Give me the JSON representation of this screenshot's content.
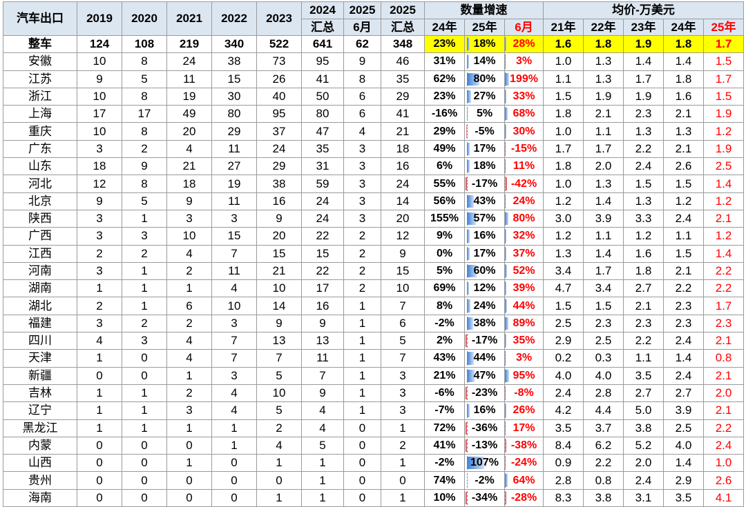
{
  "header": {
    "region": "汽车出口",
    "years": [
      "2019",
      "2020",
      "2021",
      "2022",
      "2023"
    ],
    "y2024": [
      "2024",
      "汇总"
    ],
    "y2025m": [
      "2025",
      "6月"
    ],
    "y2025t": [
      "2025",
      "汇总"
    ],
    "growth_group": "数量增速",
    "growth_cols": [
      "24年",
      "25年",
      "6月"
    ],
    "price_group": "均价-万美元",
    "price_cols": [
      "21年",
      "22年",
      "23年",
      "24年",
      "25年"
    ]
  },
  "rows": [
    {
      "name": "整车",
      "v": [
        "124",
        "108",
        "219",
        "340",
        "522",
        "641",
        "62",
        "348"
      ],
      "g24": "23%",
      "g25": "18%",
      "gm": "28%",
      "p": [
        "1.6",
        "1.8",
        "1.9",
        "1.8",
        "1.7"
      ],
      "g25n": 18,
      "gmn": 28
    },
    {
      "name": "安徽",
      "v": [
        "10",
        "8",
        "24",
        "38",
        "73",
        "95",
        "9",
        "46"
      ],
      "g24": "31%",
      "g25": "14%",
      "gm": "3%",
      "p": [
        "1.0",
        "1.3",
        "1.4",
        "1.4",
        "1.5"
      ],
      "g25n": 14,
      "gmn": 3
    },
    {
      "name": "江苏",
      "v": [
        "9",
        "5",
        "11",
        "15",
        "26",
        "41",
        "8",
        "35"
      ],
      "g24": "62%",
      "g25": "80%",
      "gm": "199%",
      "p": [
        "1.1",
        "1.3",
        "1.7",
        "1.8",
        "1.7"
      ],
      "g25n": 80,
      "gmn": 199
    },
    {
      "name": "浙江",
      "v": [
        "10",
        "8",
        "19",
        "30",
        "40",
        "50",
        "6",
        "29"
      ],
      "g24": "23%",
      "g25": "27%",
      "gm": "33%",
      "p": [
        "1.5",
        "1.9",
        "1.9",
        "1.6",
        "1.5"
      ],
      "g25n": 27,
      "gmn": 33
    },
    {
      "name": "上海",
      "v": [
        "17",
        "17",
        "49",
        "80",
        "95",
        "80",
        "6",
        "41"
      ],
      "g24": "-16%",
      "g25": "5%",
      "gm": "68%",
      "p": [
        "1.8",
        "2.1",
        "2.3",
        "2.1",
        "1.9"
      ],
      "g25n": 5,
      "gmn": 68
    },
    {
      "name": "重庆",
      "v": [
        "10",
        "8",
        "20",
        "29",
        "37",
        "47",
        "4",
        "21"
      ],
      "g24": "29%",
      "g25": "-5%",
      "gm": "30%",
      "p": [
        "1.0",
        "1.1",
        "1.3",
        "1.3",
        "1.2"
      ],
      "g25n": -5,
      "gmn": 30
    },
    {
      "name": "广东",
      "v": [
        "3",
        "2",
        "4",
        "11",
        "24",
        "35",
        "3",
        "18"
      ],
      "g24": "49%",
      "g25": "17%",
      "gm": "-15%",
      "p": [
        "1.7",
        "1.7",
        "2.2",
        "2.1",
        "1.9"
      ],
      "g25n": 17,
      "gmn": -15
    },
    {
      "name": "山东",
      "v": [
        "18",
        "9",
        "21",
        "27",
        "29",
        "31",
        "3",
        "16"
      ],
      "g24": "6%",
      "g25": "18%",
      "gm": "11%",
      "p": [
        "1.8",
        "2.0",
        "2.4",
        "2.6",
        "2.5"
      ],
      "g25n": 18,
      "gmn": 11
    },
    {
      "name": "河北",
      "v": [
        "12",
        "8",
        "18",
        "19",
        "38",
        "59",
        "3",
        "24"
      ],
      "g24": "55%",
      "g25": "-17%",
      "gm": "-42%",
      "p": [
        "1.0",
        "1.3",
        "1.5",
        "1.5",
        "1.4"
      ],
      "g25n": -17,
      "gmn": -42
    },
    {
      "name": "北京",
      "v": [
        "9",
        "5",
        "9",
        "11",
        "16",
        "24",
        "3",
        "14"
      ],
      "g24": "56%",
      "g25": "43%",
      "gm": "24%",
      "p": [
        "1.2",
        "1.4",
        "1.3",
        "1.2",
        "1.2"
      ],
      "g25n": 43,
      "gmn": 24
    },
    {
      "name": "陕西",
      "v": [
        "3",
        "1",
        "3",
        "3",
        "9",
        "24",
        "3",
        "20"
      ],
      "g24": "155%",
      "g25": "57%",
      "gm": "80%",
      "p": [
        "3.0",
        "3.9",
        "3.3",
        "2.4",
        "2.1"
      ],
      "g25n": 57,
      "gmn": 80
    },
    {
      "name": "广西",
      "v": [
        "3",
        "3",
        "10",
        "15",
        "20",
        "22",
        "2",
        "12"
      ],
      "g24": "9%",
      "g25": "16%",
      "gm": "32%",
      "p": [
        "1.2",
        "1.1",
        "1.2",
        "1.1",
        "1.2"
      ],
      "g25n": 16,
      "gmn": 32
    },
    {
      "name": "江西",
      "v": [
        "2",
        "2",
        "4",
        "7",
        "15",
        "15",
        "2",
        "9"
      ],
      "g24": "0%",
      "g25": "17%",
      "gm": "37%",
      "p": [
        "1.3",
        "1.4",
        "1.6",
        "1.5",
        "1.4"
      ],
      "g25n": 17,
      "gmn": 37
    },
    {
      "name": "河南",
      "v": [
        "3",
        "1",
        "2",
        "11",
        "21",
        "22",
        "2",
        "15"
      ],
      "g24": "5%",
      "g25": "60%",
      "gm": "52%",
      "p": [
        "3.4",
        "1.7",
        "1.8",
        "2.1",
        "2.2"
      ],
      "g25n": 60,
      "gmn": 52
    },
    {
      "name": "湖南",
      "v": [
        "1",
        "1",
        "1",
        "4",
        "10",
        "17",
        "2",
        "10"
      ],
      "g24": "69%",
      "g25": "12%",
      "gm": "39%",
      "p": [
        "4.7",
        "3.4",
        "2.7",
        "2.2",
        "2.2"
      ],
      "g25n": 12,
      "gmn": 39
    },
    {
      "name": "湖北",
      "v": [
        "2",
        "1",
        "6",
        "10",
        "14",
        "16",
        "1",
        "7"
      ],
      "g24": "8%",
      "g25": "24%",
      "gm": "44%",
      "p": [
        "1.5",
        "1.5",
        "2.1",
        "2.3",
        "1.7"
      ],
      "g25n": 24,
      "gmn": 44
    },
    {
      "name": "福建",
      "v": [
        "3",
        "2",
        "2",
        "3",
        "9",
        "9",
        "1",
        "6"
      ],
      "g24": "-2%",
      "g25": "38%",
      "gm": "89%",
      "p": [
        "2.5",
        "2.3",
        "2.3",
        "2.3",
        "2.3"
      ],
      "g25n": 38,
      "gmn": 89
    },
    {
      "name": "四川",
      "v": [
        "4",
        "3",
        "4",
        "7",
        "13",
        "13",
        "1",
        "5"
      ],
      "g24": "2%",
      "g25": "-17%",
      "gm": "35%",
      "p": [
        "2.9",
        "2.5",
        "2.2",
        "2.4",
        "2.1"
      ],
      "g25n": -17,
      "gmn": 35
    },
    {
      "name": "天津",
      "v": [
        "1",
        "0",
        "4",
        "7",
        "7",
        "11",
        "1",
        "7"
      ],
      "g24": "43%",
      "g25": "44%",
      "gm": "3%",
      "p": [
        "0.2",
        "0.3",
        "1.1",
        "1.4",
        "0.8"
      ],
      "g25n": 44,
      "gmn": 3
    },
    {
      "name": "新疆",
      "v": [
        "0",
        "0",
        "1",
        "3",
        "5",
        "7",
        "1",
        "3"
      ],
      "g24": "21%",
      "g25": "47%",
      "gm": "95%",
      "p": [
        "4.0",
        "4.0",
        "3.5",
        "2.4",
        "2.1"
      ],
      "g25n": 47,
      "gmn": 95
    },
    {
      "name": "吉林",
      "v": [
        "1",
        "1",
        "2",
        "4",
        "10",
        "9",
        "1",
        "3"
      ],
      "g24": "-6%",
      "g25": "-23%",
      "gm": "-8%",
      "p": [
        "2.4",
        "2.8",
        "2.7",
        "2.7",
        "2.0"
      ],
      "g25n": -23,
      "gmn": -8
    },
    {
      "name": "辽宁",
      "v": [
        "1",
        "1",
        "3",
        "4",
        "5",
        "4",
        "1",
        "3"
      ],
      "g24": "-7%",
      "g25": "16%",
      "gm": "26%",
      "p": [
        "4.2",
        "4.4",
        "5.0",
        "3.9",
        "2.1"
      ],
      "g25n": 16,
      "gmn": 26
    },
    {
      "name": "黑龙江",
      "v": [
        "1",
        "1",
        "1",
        "1",
        "2",
        "4",
        "0",
        "1"
      ],
      "g24": "72%",
      "g25": "-36%",
      "gm": "17%",
      "p": [
        "3.5",
        "3.7",
        "3.8",
        "2.5",
        "2.2"
      ],
      "g25n": -36,
      "gmn": 17
    },
    {
      "name": "内蒙",
      "v": [
        "0",
        "0",
        "0",
        "1",
        "4",
        "5",
        "0",
        "2"
      ],
      "g24": "41%",
      "g25": "-13%",
      "gm": "-38%",
      "p": [
        "8.4",
        "6.2",
        "5.2",
        "4.0",
        "2.4"
      ],
      "g25n": -13,
      "gmn": -38
    },
    {
      "name": "山西",
      "v": [
        "0",
        "0",
        "1",
        "0",
        "1",
        "1",
        "0",
        "1"
      ],
      "g24": "-2%",
      "g25": "107%",
      "gm": "-24%",
      "p": [
        "0.9",
        "2.2",
        "2.0",
        "1.4",
        "1.0"
      ],
      "g25n": 107,
      "gmn": -24
    },
    {
      "name": "贵州",
      "v": [
        "0",
        "0",
        "0",
        "0",
        "0",
        "1",
        "0",
        "0"
      ],
      "g24": "74%",
      "g25": "-2%",
      "gm": "64%",
      "p": [
        "2.8",
        "0.8",
        "2.4",
        "2.9",
        "2.6"
      ],
      "g25n": -2,
      "gmn": 64
    },
    {
      "name": "海南",
      "v": [
        "0",
        "0",
        "0",
        "0",
        "1",
        "1",
        "0",
        "1"
      ],
      "g24": "10%",
      "g25": "-34%",
      "gm": "-28%",
      "p": [
        "8.3",
        "3.8",
        "3.1",
        "3.5",
        "4.1"
      ],
      "g25n": -34,
      "gmn": -28
    }
  ],
  "colors": {
    "header_bg": "#dce6f1",
    "highlight": "#ffff00",
    "negative_text": "#ff0000",
    "bar_positive": "#3d7fd6",
    "bar_negative": "#e53b3b"
  }
}
